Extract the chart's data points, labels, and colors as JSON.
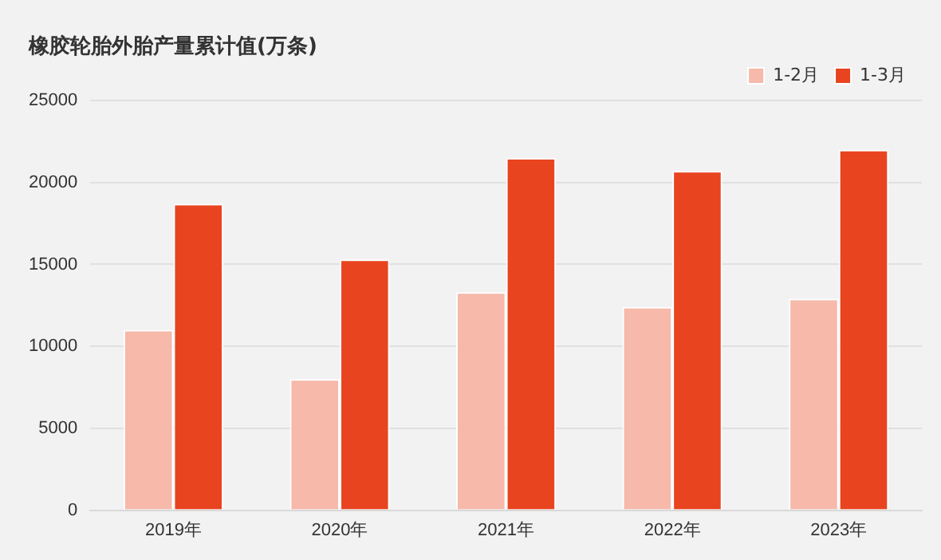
{
  "chart_data": {
    "type": "bar",
    "title": "橡胶轮胎外胎产量累计值(万条)",
    "categories": [
      "2019年",
      "2020年",
      "2021年",
      "2022年",
      "2023年"
    ],
    "series": [
      {
        "name": "1-2月",
        "color": "#f6b9aa",
        "values": [
          11000,
          8000,
          13300,
          12400,
          12900
        ]
      },
      {
        "name": "1-3月",
        "color": "#e8441f",
        "values": [
          18700,
          15300,
          21500,
          20700,
          22000
        ]
      }
    ],
    "ylim": [
      0,
      25000
    ],
    "yticks": [
      0,
      5000,
      10000,
      15000,
      20000,
      25000
    ],
    "grid": "y",
    "legend": "top right"
  }
}
